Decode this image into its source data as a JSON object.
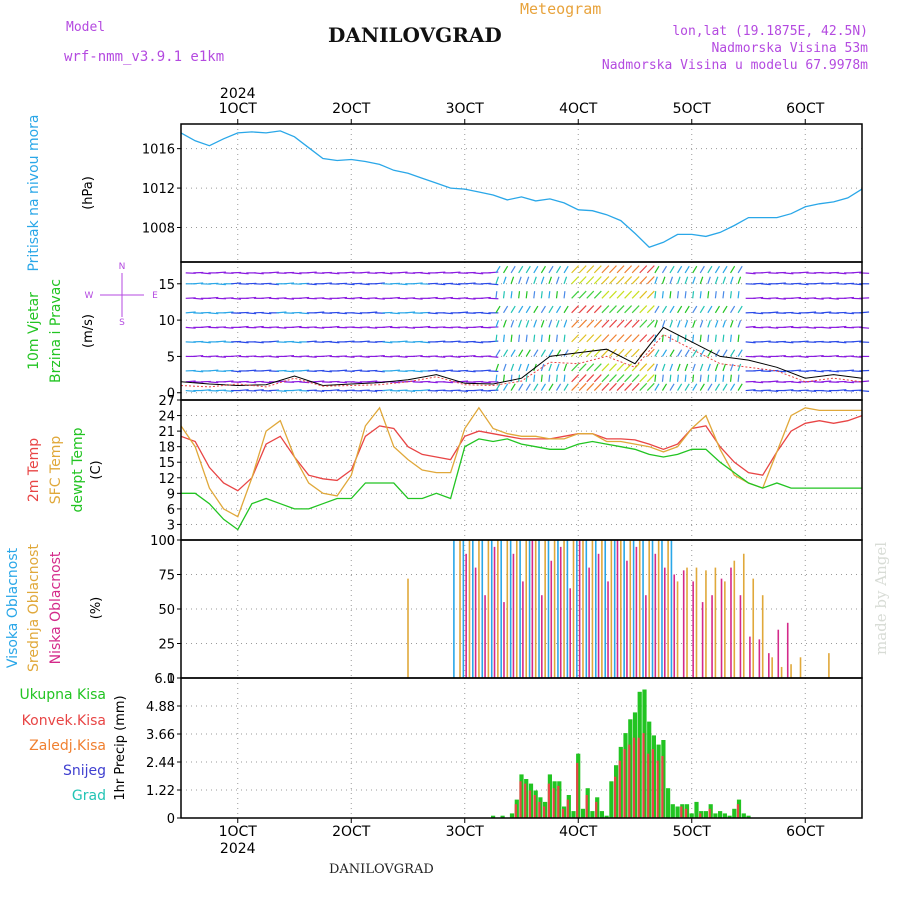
{
  "header": {
    "model_label": "Model",
    "model_name": "wrf-nmm_v3.9.1 e1km",
    "meteogram_label": "Meteogram",
    "location": "DANILOVGRAD",
    "lonlat": "lon,lat (19.1875E, 42.5N)",
    "elevation": "Nadmorska Visina 53m",
    "model_elevation": "Nadmorska Visina u modelu 67.9978m",
    "footer": "DANILOVGRAD",
    "watermark": "made by Angel"
  },
  "colors": {
    "pressure": "#2aa7e8",
    "t2m": "#e84545",
    "sfc": "#e0a83a",
    "dewpoint": "#22c422",
    "high_cloud": "#2aa7e8",
    "mid_cloud": "#e0a83a",
    "low_cloud": "#d42a8a",
    "total_precip": "#22c422",
    "convective": "#e84545",
    "frozen": "#f08030",
    "snow": "#4040d0",
    "hail": "#22c4b4",
    "wind_purple": "#8a1ae0",
    "wind_blue": "#2a4ae8"
  },
  "chart_data": [
    {
      "type": "line",
      "name": "pressure",
      "ylabel": "Pritisak na nivou mora",
      "unit": "(hPa)",
      "x_axis": {
        "range_hours": [
          0,
          144
        ],
        "top_labels": [
          "1OCT",
          "2OCT",
          "3OCT",
          "4OCT",
          "5OCT",
          "6OCT"
        ],
        "year": "2024",
        "first_label_hour": 12
      },
      "ylim": [
        1004.5,
        1018.5
      ],
      "yticks": [
        "1016",
        "1012",
        "1008"
      ],
      "ytick_values": [
        1016,
        1012,
        1008
      ],
      "grid": true,
      "series": [
        {
          "key": "pressure",
          "hours": [
            0,
            3,
            6,
            9,
            12,
            15,
            18,
            21,
            24,
            27,
            30,
            33,
            36,
            39,
            42,
            45,
            48,
            51,
            54,
            57,
            60,
            63,
            66,
            69,
            72,
            75,
            78,
            81,
            84,
            87,
            90,
            93,
            96,
            99,
            102,
            105,
            108,
            111,
            114,
            117,
            120,
            123,
            126,
            129,
            132,
            135,
            138,
            141,
            144
          ],
          "values": [
            1017.6,
            1016.8,
            1016.3,
            1017.0,
            1017.6,
            1017.7,
            1017.6,
            1017.8,
            1017.2,
            1016.1,
            1015.0,
            1014.8,
            1014.9,
            1014.7,
            1014.4,
            1013.8,
            1013.5,
            1013.0,
            1012.5,
            1012.0,
            1011.9,
            1011.6,
            1011.3,
            1010.8,
            1011.1,
            1010.7,
            1010.9,
            1010.5,
            1009.8,
            1009.7,
            1009.3,
            1008.7,
            1007.4,
            1006.0,
            1006.5,
            1007.3,
            1007.3,
            1007.1,
            1007.5,
            1008.2,
            1009.0,
            1009.0,
            1009.0,
            1009.4,
            1010.1,
            1010.4,
            1010.6,
            1011.0,
            1011.9
          ]
        }
      ]
    },
    {
      "type": "line",
      "name": "wind",
      "ylabel_lines": [
        "10m Vjetar",
        "Brzina i Pravac"
      ],
      "unit": "(m/s)",
      "compass": {
        "n": "N",
        "w": "W",
        "e": "E",
        "s": "S"
      },
      "ylim": [
        -1,
        18
      ],
      "yticks": [
        "15",
        "10",
        "5",
        "0"
      ],
      "ytick_values": [
        15,
        10,
        5,
        0
      ],
      "grid": true,
      "series": [
        {
          "name": "speed",
          "hours": [
            0,
            6,
            12,
            18,
            24,
            30,
            36,
            42,
            48,
            54,
            60,
            66,
            72,
            78,
            84,
            90,
            96,
            102,
            108,
            114,
            120,
            126,
            132,
            138,
            144
          ],
          "values": [
            1.5,
            1.2,
            1.0,
            1.1,
            2.3,
            1.0,
            1.2,
            1.4,
            1.8,
            2.5,
            1.3,
            1.2,
            2.0,
            5.0,
            5.5,
            6.0,
            4.0,
            9.0,
            7.0,
            5.0,
            4.5,
            3.5,
            2.0,
            2.5,
            2.0
          ]
        },
        {
          "name": "gust",
          "hours": [
            0,
            6,
            12,
            18,
            24,
            30,
            36,
            42,
            48,
            54,
            60,
            66,
            72,
            78,
            84,
            90,
            96,
            102,
            108,
            114,
            120,
            126,
            132,
            138,
            144
          ],
          "values": [
            1.0,
            0.8,
            1.2,
            0.8,
            2.0,
            0.9,
            1.0,
            1.1,
            1.5,
            2.2,
            1.1,
            1.0,
            1.6,
            4.2,
            4.0,
            5.0,
            3.5,
            8.0,
            6.0,
            4.0,
            3.5,
            3.0,
            1.5,
            2.0,
            1.5
          ]
        }
      ]
    },
    {
      "type": "line",
      "name": "temperature",
      "ylabel_lines": [
        "2m Temp",
        "SFC Temp",
        "dewpt Temp"
      ],
      "unit": "(C)",
      "ylim": [
        0,
        27
      ],
      "yticks": [
        "27",
        "24",
        "21",
        "18",
        "15",
        "12",
        "9",
        "6",
        "3",
        "0"
      ],
      "ytick_values": [
        27,
        24,
        21,
        18,
        15,
        12,
        9,
        6,
        3,
        0
      ],
      "grid": true,
      "x_hours": [
        0,
        3,
        6,
        9,
        12,
        15,
        18,
        21,
        24,
        27,
        30,
        33,
        36,
        39,
        42,
        45,
        48,
        51,
        54,
        57,
        60,
        63,
        66,
        69,
        72,
        75,
        78,
        81,
        84,
        87,
        90,
        93,
        96,
        99,
        102,
        105,
        108,
        111,
        114,
        117,
        120,
        123,
        126,
        129,
        132,
        135,
        138,
        141,
        144
      ],
      "series": [
        {
          "name": "2m Temp",
          "key": "t2m",
          "values": [
            20,
            19,
            14,
            11,
            9.5,
            12,
            18.5,
            20,
            16,
            12.5,
            11.8,
            11.5,
            13.5,
            20,
            22,
            21.5,
            18,
            16.5,
            16,
            15.5,
            20,
            21,
            20.5,
            20,
            19.5,
            19.5,
            19.5,
            20,
            20.5,
            20.5,
            19.5,
            19.5,
            19.3,
            18.5,
            17.5,
            18.5,
            21.5,
            22,
            18,
            15,
            13,
            12.5,
            17,
            21,
            22.5,
            23,
            22.5,
            23,
            24
          ]
        },
        {
          "name": "SFC Temp",
          "key": "sfc",
          "values": [
            22,
            18,
            10,
            6,
            4.5,
            12,
            21,
            23,
            16,
            11,
            9,
            8.5,
            12.5,
            22,
            25.5,
            18,
            15.5,
            13.5,
            13,
            13,
            21.5,
            25.5,
            21.5,
            20.5,
            20,
            20,
            19.5,
            19.5,
            20.5,
            20.5,
            19,
            19,
            18.5,
            18,
            17,
            18,
            21.5,
            24,
            17.5,
            12.5,
            11,
            10,
            17,
            24,
            25.5,
            25,
            25,
            25,
            25
          ]
        },
        {
          "name": "dewpt Temp",
          "key": "dewpoint",
          "values": [
            9,
            9,
            7,
            4,
            2,
            7,
            8,
            7,
            6,
            6,
            7,
            8,
            8,
            11,
            11,
            11,
            8,
            8,
            9,
            8,
            18,
            19.5,
            19,
            19.5,
            18.5,
            18,
            17.5,
            17.5,
            18.5,
            19,
            18.5,
            18,
            17.5,
            16.5,
            16,
            16.5,
            17.5,
            17.5,
            15,
            13,
            11,
            10,
            11,
            10,
            10,
            10,
            10,
            10,
            10
          ]
        }
      ]
    },
    {
      "type": "bar",
      "name": "cloudiness",
      "ylabel_lines": [
        "Visoka Oblacnost",
        "Srednja Oblacnost",
        "Niska Oblacnost"
      ],
      "unit": "(%)",
      "ylim": [
        0,
        100
      ],
      "yticks": [
        "100",
        "75",
        "50",
        "25",
        "0"
      ],
      "ytick_values": [
        100,
        75,
        50,
        25,
        0
      ],
      "grid": true,
      "series": [
        {
          "name": "Visoka Oblacnost",
          "key": "high_cloud",
          "hours": [
            58,
            60,
            62,
            64,
            66,
            68,
            70,
            72,
            74,
            76,
            78,
            80,
            82,
            84,
            86,
            88,
            90,
            92,
            94,
            96,
            98,
            100,
            102,
            104
          ],
          "values": [
            100,
            100,
            100,
            100,
            100,
            100,
            100,
            100,
            100,
            100,
            100,
            100,
            100,
            100,
            100,
            100,
            100,
            100,
            100,
            100,
            100,
            100,
            100,
            100
          ]
        },
        {
          "name": "Srednja Oblacnost",
          "key": "mid_cloud",
          "hours": [
            48,
            59,
            61,
            63,
            65,
            67,
            69,
            71,
            73,
            75,
            77,
            79,
            81,
            83,
            85,
            87,
            89,
            91,
            93,
            95,
            97,
            99,
            101,
            103,
            105,
            107,
            109,
            111,
            113,
            115,
            117,
            119,
            121,
            123,
            125,
            127,
            129,
            131,
            133,
            135,
            137,
            139
          ],
          "values": [
            72,
            100,
            100,
            100,
            100,
            100,
            100,
            100,
            100,
            100,
            100,
            100,
            100,
            100,
            100,
            100,
            100,
            100,
            100,
            100,
            100,
            100,
            100,
            100,
            70,
            80,
            80,
            78,
            80,
            70,
            85,
            90,
            72,
            60,
            15,
            8,
            10,
            15,
            0,
            0,
            18,
            0
          ]
        },
        {
          "name": "Niska Oblacnost",
          "key": "low_cloud",
          "hours": [
            60,
            62,
            64,
            66,
            68,
            70,
            72,
            74,
            76,
            78,
            80,
            82,
            84,
            86,
            88,
            90,
            92,
            94,
            96,
            98,
            100,
            102,
            104,
            106,
            108,
            110,
            112,
            114,
            116,
            118,
            120,
            122,
            124,
            126,
            128,
            130
          ],
          "values": [
            90,
            80,
            60,
            95,
            55,
            90,
            70,
            100,
            60,
            85,
            95,
            65,
            100,
            80,
            90,
            70,
            100,
            85,
            95,
            60,
            90,
            80,
            75,
            78,
            70,
            55,
            60,
            72,
            80,
            60,
            30,
            28,
            18,
            35,
            40,
            0
          ]
        }
      ]
    },
    {
      "type": "bar",
      "name": "precipitation",
      "ylabel_lines": [
        "1hr Precip (mm)"
      ],
      "legend": [
        "Ukupna Kisa",
        "Konvek.Kisa",
        "Zaledj.Kisa",
        "Snijeg",
        "Grad"
      ],
      "ylim": [
        0,
        6.1
      ],
      "yticks": [
        "6.1",
        "4.88",
        "3.66",
        "2.44",
        "1.22",
        "0"
      ],
      "ytick_values": [
        6.1,
        4.88,
        3.66,
        2.44,
        1.22,
        0
      ],
      "grid": true,
      "x_axis": {
        "bottom_labels": [
          "1OCT",
          "2OCT",
          "3OCT",
          "4OCT",
          "5OCT",
          "6OCT"
        ],
        "year": "2024"
      },
      "series": [
        {
          "name": "Ukupna Kisa",
          "key": "total_precip",
          "hours": [
            66,
            68,
            70,
            71,
            72,
            73,
            74,
            75,
            76,
            77,
            78,
            79,
            80,
            81,
            82,
            83,
            84,
            85,
            86,
            87,
            88,
            89,
            90,
            91,
            92,
            93,
            94,
            95,
            96,
            97,
            98,
            99,
            100,
            101,
            102,
            103,
            104,
            105,
            106,
            107,
            108,
            109,
            110,
            111,
            112,
            113,
            114,
            115,
            116,
            117,
            118,
            119,
            120
          ],
          "values": [
            0.1,
            0.1,
            0.2,
            0.8,
            1.9,
            1.7,
            1.5,
            1.2,
            0.9,
            0.7,
            1.9,
            1.6,
            1.6,
            0.5,
            1.0,
            0.3,
            2.8,
            0.4,
            1.3,
            0.3,
            0.9,
            0.3,
            0.1,
            1.6,
            2.3,
            3.1,
            3.7,
            4.3,
            4.6,
            5.5,
            5.6,
            4.2,
            3.6,
            3.2,
            3.4,
            1.3,
            0.6,
            0.5,
            0.6,
            0.6,
            0.2,
            0.7,
            0.3,
            0.3,
            0.6,
            0.2,
            0.3,
            0.2,
            0.1,
            0.4,
            0.8,
            0.2,
            0.1
          ]
        },
        {
          "name": "Konvek.Kisa",
          "key": "convective",
          "hours": [
            71,
            72,
            73,
            74,
            75,
            76,
            77,
            78,
            79,
            80,
            81,
            82,
            84,
            86,
            88,
            92,
            93,
            94,
            95,
            96,
            97,
            98,
            99,
            100,
            101,
            102,
            106,
            107,
            110,
            112,
            118
          ],
          "values": [
            0.6,
            1.6,
            1.5,
            1.2,
            1.0,
            0.7,
            0.5,
            1.5,
            1.3,
            1.4,
            0.4,
            0.8,
            2.4,
            1.0,
            0.7,
            1.8,
            2.5,
            3.0,
            3.2,
            3.5,
            3.5,
            3.7,
            2.8,
            3.0,
            2.5,
            2.7,
            0.5,
            0.4,
            0.2,
            0.4,
            0.6
          ]
        }
      ]
    }
  ]
}
